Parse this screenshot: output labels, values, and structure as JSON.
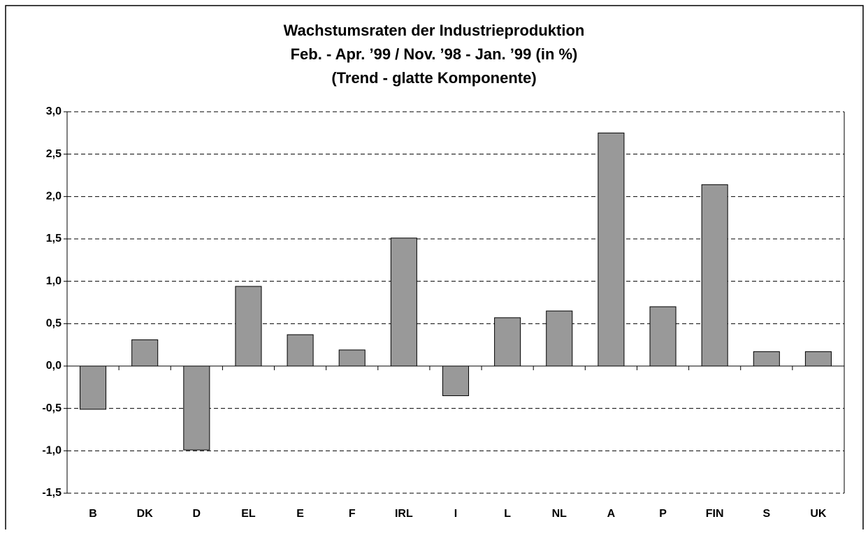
{
  "chart_data": {
    "type": "bar",
    "title": [
      "Wachstumsraten der Industrieproduktion",
      "Feb. - Apr. ’99 / Nov. ’98 - Jan. ’99 (in %)",
      "(Trend - glatte Komponente)"
    ],
    "categories": [
      "B",
      "DK",
      "D",
      "EL",
      "E",
      "F",
      "IRL",
      "I",
      "L",
      "NL",
      "A",
      "P",
      "FIN",
      "S",
      "UK"
    ],
    "values": [
      -0.51,
      0.31,
      -0.99,
      0.94,
      0.37,
      0.19,
      1.51,
      -0.35,
      0.57,
      0.65,
      2.75,
      0.7,
      2.14,
      0.17,
      0.17
    ],
    "color": "#999999",
    "ylim": [
      -1.5,
      3.0
    ],
    "yticks": [
      {
        "value": -1.5,
        "label": "-1,5"
      },
      {
        "value": -1.0,
        "label": "-1,0"
      },
      {
        "value": -0.5,
        "label": "-0,5"
      },
      {
        "value": 0,
        "label": "0,0"
      },
      {
        "value": 0.5,
        "label": "0,5"
      },
      {
        "value": 1.0,
        "label": "1,0"
      },
      {
        "value": 1.5,
        "label": "1,5"
      },
      {
        "value": 2.0,
        "label": "2,0"
      },
      {
        "value": 2.5,
        "label": "2,5"
      },
      {
        "value": 3.0,
        "label": "3,0"
      }
    ],
    "grid": true
  }
}
